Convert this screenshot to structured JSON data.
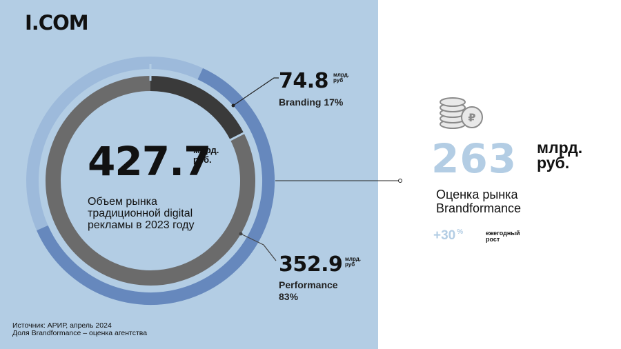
{
  "logo": "I.COM",
  "chart_data": {
    "type": "pie",
    "title": "427.7",
    "unit": "млрд. руб.",
    "description": "Объем рынка традиционной digital рекламы в 2023 году",
    "slices": [
      {
        "label": "Branding",
        "value": 74.8,
        "percent": 17,
        "color": "#3a3a3a"
      },
      {
        "label": "Performance",
        "value": 352.9,
        "percent": 83,
        "color": "#6b6b6b"
      }
    ],
    "outer_ring": {
      "brandformance_value": 263,
      "color": "#6688bd",
      "track_color": "#9dbadb"
    }
  },
  "total": {
    "value": "427.7",
    "unit_line1": "млрд.",
    "unit_line2": "руб.",
    "description": "Объем рынка традиционной digital рекламы в 2023 году"
  },
  "branding": {
    "value": "74.8",
    "unit_line1": "млрд.",
    "unit_line2": "руб",
    "label": "Branding 17%"
  },
  "performance": {
    "value": "352.9",
    "unit_line1": "млрд.",
    "unit_line2": "руб",
    "label_line1": "Performance",
    "label_line2": "83%"
  },
  "source": {
    "line1": "Источник: АРИР, апрель 2024",
    "line2": "Доля Brandformance – оценка агентства"
  },
  "brandformance": {
    "value": "263",
    "unit_line1": "млрд.",
    "unit_line2": "руб.",
    "desc_line1": "Оценка рынка",
    "desc_line2": "Brandformance",
    "growth_value": "+30",
    "growth_percent": "%",
    "growth_label_line1": "ежегодный",
    "growth_label_line2": "рост"
  },
  "colors": {
    "panel": "#b3cde4",
    "accent_light": "#b3cde4",
    "ring_blue": "#6688bd"
  },
  "icons": {
    "coins": "coins-ruble-icon"
  }
}
